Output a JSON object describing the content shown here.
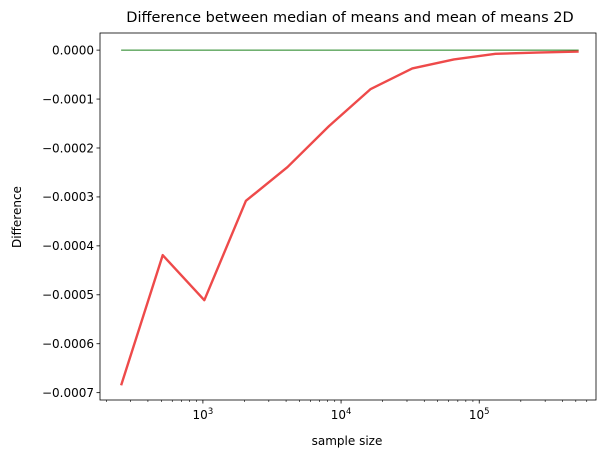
{
  "chart_data": {
    "type": "line",
    "title": "Difference between median of means and mean of means 2D",
    "xlabel": "sample size",
    "ylabel": "Difference",
    "x_scale": "log",
    "xlim": [
      180,
      700000
    ],
    "ylim": [
      -0.000715,
      3.5e-05
    ],
    "x_ticks": [
      {
        "value": 1000,
        "base": "10",
        "exp": "3"
      },
      {
        "value": 10000,
        "base": "10",
        "exp": "4"
      },
      {
        "value": 100000,
        "base": "10",
        "exp": "5"
      }
    ],
    "y_ticks": [
      {
        "value": 0.0,
        "label": "0.0000"
      },
      {
        "value": -0.0001,
        "label": "−0.0001"
      },
      {
        "value": -0.0002,
        "label": "−0.0002"
      },
      {
        "value": -0.0003,
        "label": "−0.0003"
      },
      {
        "value": -0.0004,
        "label": "−0.0004"
      },
      {
        "value": -0.0005,
        "label": "−0.0005"
      },
      {
        "value": -0.0006,
        "label": "−0.0006"
      },
      {
        "value": -0.0007,
        "label": "−0.0007"
      }
    ],
    "grid": false,
    "series": [
      {
        "color": "#ee4a4a",
        "x": [
          256,
          512,
          1024,
          2048,
          4096,
          8192,
          16384,
          32768,
          65536,
          131072,
          262144,
          524288
        ],
        "y": [
          -0.000685,
          -0.000419,
          -0.000511,
          -0.000308,
          -0.000239,
          -0.000155,
          -7.95e-05,
          -3.75e-05,
          -1.9e-05,
          -7.5e-06,
          -5e-06,
          -3e-06
        ]
      },
      {
        "color": "#1a801a",
        "x": [
          256,
          524288
        ],
        "y": [
          0.0,
          0.0
        ]
      }
    ]
  }
}
